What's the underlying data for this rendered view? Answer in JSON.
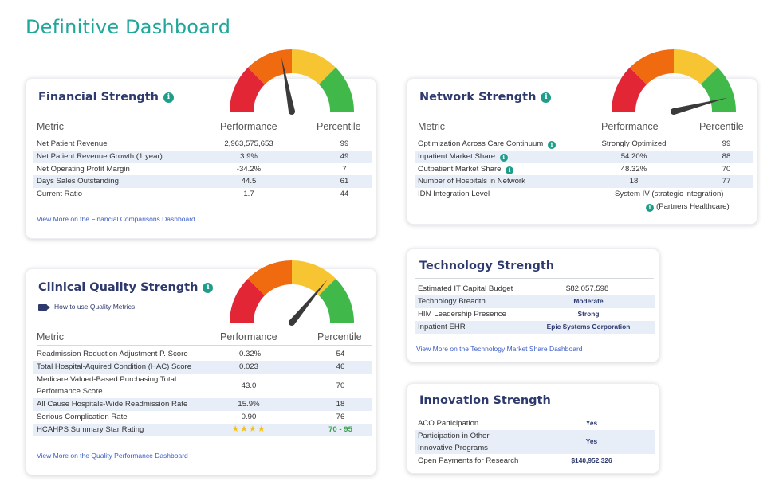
{
  "page_title": "Definitive Dashboard",
  "colors": {
    "accent": "#1fa79a",
    "title_navy": "#2e3a6e",
    "gauge_red": "#e32636",
    "gauge_orange": "#f06a10",
    "gauge_yellow": "#f7c531",
    "gauge_green": "#41b84a",
    "needle": "#3a3a3a",
    "row_highlight": "#e8eef8",
    "link_blue": "#3b5cc4"
  },
  "financial": {
    "title": "Financial Strength",
    "info_icon": "info-icon",
    "gauge_level": 0.44,
    "headers": [
      "Metric",
      "Performance",
      "Percentile"
    ],
    "rows": [
      {
        "metric": "Net Patient Revenue",
        "performance": "2,963,575,653",
        "percentile": "99"
      },
      {
        "metric": "Net Patient Revenue Growth (1 year)",
        "performance": "3.9%",
        "percentile": "49"
      },
      {
        "metric": "Net Operating Profit Margin",
        "performance": "-34.2%",
        "percentile": "7"
      },
      {
        "metric": "Days Sales Outstanding",
        "performance": "44.5",
        "percentile": "61"
      },
      {
        "metric": "Current Ratio",
        "performance": "1.7",
        "percentile": "44"
      }
    ],
    "link": "View More on the Financial Comparisons Dashboard"
  },
  "network": {
    "title": "Network Strength",
    "info_icon": "info-icon",
    "gauge_level": 0.92,
    "headers": [
      "Metric",
      "Performance",
      "Percentile"
    ],
    "rows": [
      {
        "metric": "Optimization Across Care Continuum",
        "performance": "Strongly Optimized",
        "percentile": "99",
        "info": true
      },
      {
        "metric": "Inpatient Market Share",
        "performance": "54.20%",
        "percentile": "88",
        "info": true
      },
      {
        "metric": "Outpatient Market Share",
        "performance": "48.32%",
        "percentile": "70",
        "info": true
      },
      {
        "metric": "Number of Hospitals in Network",
        "performance": "18",
        "percentile": "77"
      },
      {
        "metric": "IDN Integration Level",
        "performance": "System IV (strategic integration)",
        "percentile": ""
      }
    ],
    "partner_note": "(Partners Healthcare)"
  },
  "clinical": {
    "title": "Clinical Quality Strength",
    "info_icon": "info-icon",
    "gauge_level": 0.72,
    "video_link": "How to use Quality Metrics",
    "video_icon": "video-camera-icon",
    "headers": [
      "Metric",
      "Performance",
      "Percentile"
    ],
    "rows": [
      {
        "metric": "Readmission Reduction Adjustment P. Score",
        "performance": "-0.32%",
        "percentile": "54"
      },
      {
        "metric": "Total Hospital-Aquired Condition (HAC) Score",
        "performance": "0.023",
        "percentile": "46"
      },
      {
        "metric_line1": "Medicare Valued-Based Purchasing Total",
        "metric_line2": "Performance Score",
        "performance": "43.0",
        "percentile": "70"
      },
      {
        "metric": "All Cause Hospitals-Wide Readmission Rate",
        "performance": "15.9%",
        "percentile": "18"
      },
      {
        "metric": "Serious Complication Rate",
        "performance": "0.90",
        "percentile": "76"
      },
      {
        "metric": "HCAHPS Summary Star Rating",
        "performance": "★★★★",
        "percentile": "70 - 95",
        "stars": 4
      }
    ],
    "link": "View More on the Quality Performance Dashboard"
  },
  "technology": {
    "title": "Technology Strength",
    "rows": [
      {
        "metric": "Estimated IT Capital Budget",
        "value": "$82,057,598"
      },
      {
        "metric": "Technology Breadth",
        "value": "Moderate"
      },
      {
        "metric": "HIM Leadership Presence",
        "value": "Strong"
      },
      {
        "metric": "Inpatient EHR",
        "value": "Epic Systems Corporation"
      }
    ],
    "link": "View More on the Technology Market Share Dashboard"
  },
  "innovation": {
    "title": "Innovation Strength",
    "rows": [
      {
        "metric": "ACO Participation",
        "value": "Yes"
      },
      {
        "metric_line1": "Participation in Other",
        "metric_line2": "Innovative Programs",
        "value": "Yes"
      },
      {
        "metric": "Open Payments for Research",
        "value": "$140,952,326"
      }
    ]
  }
}
